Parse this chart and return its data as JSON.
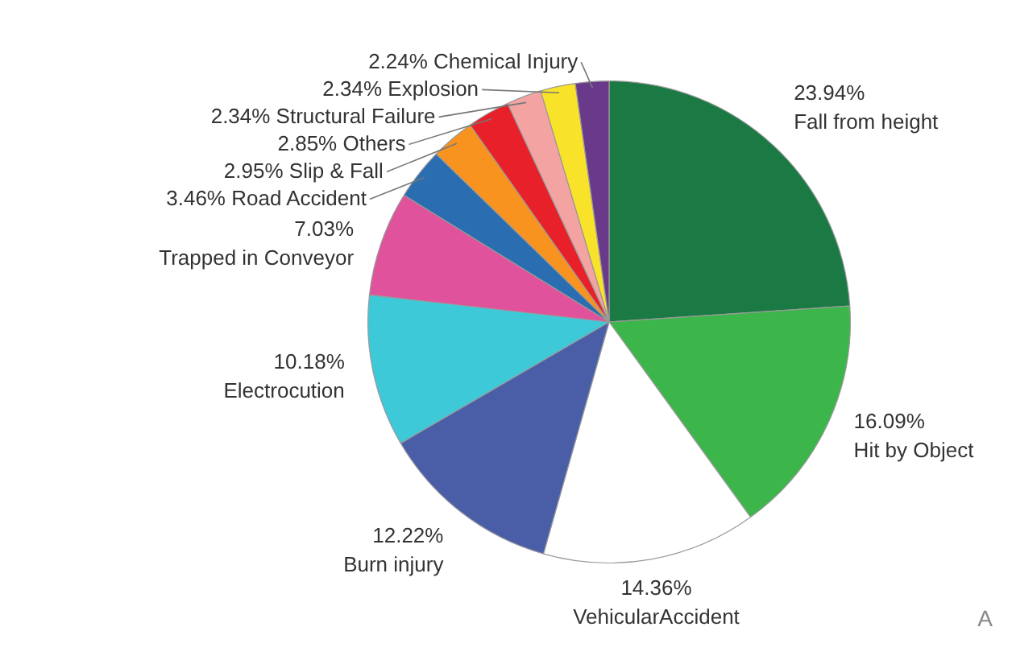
{
  "chart_data": {
    "type": "pie",
    "categories": [
      "Fall from height",
      "Hit by Object",
      "VehicularAccident",
      "Burn injury",
      "Electrocution",
      "Trapped in Conveyor",
      "Road Accident",
      "Slip & Fall",
      "Others",
      "Structural Failure",
      "Explosion",
      "Chemical Injury"
    ],
    "values": [
      23.94,
      16.09,
      14.36,
      12.22,
      10.18,
      7.03,
      3.46,
      2.95,
      2.85,
      2.34,
      2.34,
      2.24
    ],
    "value_labels": [
      "23.94%",
      "16.09%",
      "14.36%",
      "12.22%",
      "10.18%",
      "7.03%",
      "3.46%",
      "2.95%",
      "2.85%",
      "2.34%",
      "2.34%",
      "2.24%"
    ],
    "colors": [
      "#1b7a43",
      "#3cb54a",
      "#ffffff",
      "#4a5ea8",
      "#3ec9d9",
      "#e0529c",
      "#2a6db0",
      "#f7931e",
      "#e8202a",
      "#f4a3a3",
      "#f8e22a",
      "#6a3a8a"
    ],
    "legend": false,
    "annotations": [
      "A"
    ]
  }
}
